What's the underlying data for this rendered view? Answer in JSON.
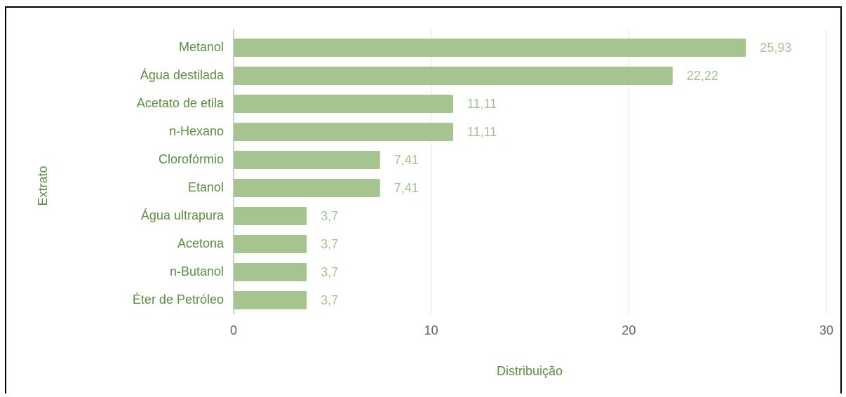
{
  "chart_data": {
    "type": "bar",
    "orientation": "horizontal",
    "x_label": "Distribuição",
    "y_label": "Extrato",
    "categories": [
      "Metanol",
      "Água destilada",
      "Acetato de etila",
      "n-Hexano",
      "Clorofórmio",
      "Etanol",
      "Água ultrapura",
      "Acetona",
      "n-Butanol",
      "Éter de Petróleo"
    ],
    "values": [
      25.93,
      22.22,
      11.11,
      11.11,
      7.41,
      7.41,
      3.7,
      3.7,
      3.7,
      3.7
    ],
    "value_labels": [
      "25,93",
      "22,22",
      "11,11",
      "11,11",
      "7,41",
      "7,41",
      "3,7",
      "3,7",
      "3,7",
      "3,7"
    ],
    "color": "#a5c490",
    "xlim": [
      0,
      30
    ],
    "xticks": [
      0,
      10,
      20,
      30
    ],
    "grid": true
  }
}
